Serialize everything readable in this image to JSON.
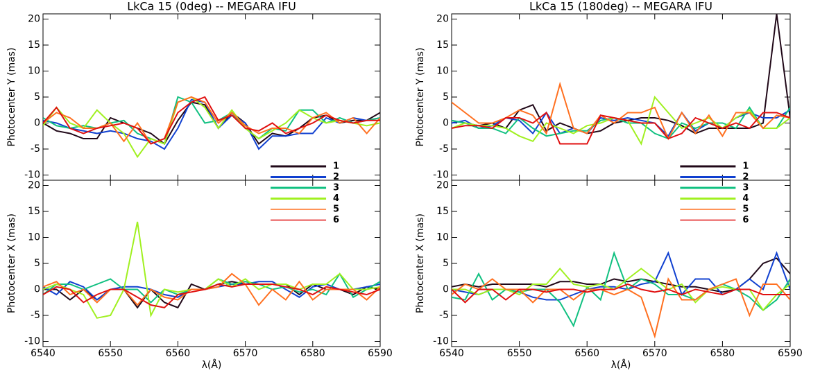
{
  "chart_data": [
    {
      "type": "line",
      "title": "LkCa 15 (0deg) -- MEGARA IFU",
      "xlabel": "λ(Å)",
      "x": [
        6540,
        6542,
        6544,
        6546,
        6548,
        6550,
        6552,
        6554,
        6556,
        6558,
        6560,
        6562,
        6564,
        6566,
        6568,
        6570,
        6572,
        6574,
        6576,
        6578,
        6580,
        6582,
        6584,
        6586,
        6588,
        6590
      ],
      "xlim": [
        6540,
        6590
      ],
      "xticks": [
        6540,
        6550,
        6560,
        6570,
        6580,
        6590
      ],
      "legend": [
        {
          "name": "1",
          "color": "#200818"
        },
        {
          "name": "2",
          "color": "#1040d0"
        },
        {
          "name": "3",
          "color": "#10c080"
        },
        {
          "name": "4",
          "color": "#a0f020"
        },
        {
          "name": "5",
          "color": "#ff7020"
        },
        {
          "name": "6",
          "color": "#e01010"
        }
      ],
      "panels": [
        {
          "ylabel": "Photocenter Y (mas)",
          "ylim": [
            -11,
            21
          ],
          "yticks": [
            -10,
            -5,
            0,
            5,
            10,
            15,
            20
          ],
          "series": [
            {
              "values": [
                0,
                -1.5,
                -2,
                -3,
                -3,
                1,
                0,
                -1,
                -2,
                -4,
                0.5,
                4,
                3.5,
                -1,
                2,
                0,
                -4,
                -2,
                -2.5,
                -1,
                1,
                1.5,
                0,
                0.5,
                0.5,
                2
              ]
            },
            {
              "values": [
                0.5,
                0,
                -1,
                -1.5,
                -2,
                -1.5,
                -2,
                -3,
                -3.5,
                -5,
                -1,
                4.5,
                4,
                -1,
                1.5,
                0,
                -5,
                -2.5,
                -2.5,
                -2,
                -2,
                1,
                0,
                1,
                0.5,
                1
              ]
            },
            {
              "values": [
                1,
                -0.5,
                -1,
                -0.5,
                -1,
                0,
                0.5,
                -2,
                -3,
                -4,
                5,
                4,
                0,
                0.5,
                2,
                -1,
                -3,
                -1,
                -1.5,
                2.5,
                2.5,
                0,
                1,
                0,
                0.5,
                1
              ]
            },
            {
              "values": [
                -0.5,
                3,
                0,
                -1,
                2.5,
                0,
                -2,
                -6.5,
                -3,
                -4,
                4,
                5,
                3,
                -1,
                2.5,
                -1,
                -3,
                -1.5,
                0,
                2.5,
                1,
                0,
                0.5,
                0,
                -0.5,
                0
              ]
            },
            {
              "values": [
                0,
                2,
                1,
                -1,
                -1,
                0,
                -3.5,
                0,
                -4,
                -3,
                4,
                5,
                4,
                0,
                2,
                -0.5,
                -2,
                -1,
                -1,
                -2,
                1,
                2,
                0,
                1,
                -2,
                1
              ]
            },
            {
              "values": [
                0,
                3,
                -1,
                -2,
                -1,
                -0.5,
                0,
                -1,
                -4,
                -3,
                2,
                4,
                5,
                0.5,
                1.5,
                -1,
                -1.5,
                0,
                -2,
                -1,
                0,
                1.5,
                0.5,
                0,
                0.5,
                0.5
              ]
            }
          ]
        },
        {
          "ylabel": "Photocenter X (mas)",
          "ylim": [
            -11,
            21
          ],
          "yticks": [
            -10,
            -5,
            0,
            5,
            10,
            15,
            20
          ],
          "series": [
            {
              "values": [
                0,
                0,
                -2,
                0,
                -2,
                0,
                0,
                -3.5,
                0,
                -2.5,
                -3.5,
                1,
                0,
                1,
                1.5,
                1,
                1,
                1,
                1,
                -1,
                1,
                0,
                0,
                -1,
                0.5,
                0
              ]
            },
            {
              "values": [
                0.5,
                -1,
                1.5,
                0.5,
                -2,
                0,
                0.5,
                0.5,
                0,
                -1,
                -1.5,
                0,
                0,
                0.5,
                1,
                1,
                1.5,
                1.5,
                0,
                -1.5,
                0.5,
                1,
                0,
                0,
                0.5,
                1
              ]
            },
            {
              "values": [
                -1,
                1,
                1,
                0,
                1,
                2,
                0,
                0,
                -2.5,
                0,
                -1,
                0,
                0,
                2,
                1,
                1.5,
                1,
                0,
                0.5,
                -0.5,
                0,
                -1,
                3,
                -1.5,
                0,
                1.5
              ]
            },
            {
              "values": [
                0,
                1,
                0,
                -1,
                -5.5,
                -5,
                0,
                13,
                -5,
                0,
                -0.5,
                0,
                0,
                2,
                0.5,
                2,
                0,
                1,
                1,
                0,
                1,
                1,
                3,
                0,
                0,
                0.5
              ]
            },
            {
              "values": [
                0.5,
                1.5,
                -1,
                0,
                -2.5,
                0,
                0,
                -3,
                0,
                -1.5,
                -2,
                0,
                0,
                0.5,
                3,
                1,
                -3,
                0,
                -2,
                1.5,
                -2,
                0,
                0,
                0,
                -2,
                0.5
              ]
            },
            {
              "values": [
                -1,
                0.5,
                0,
                -2.5,
                -1,
                0,
                0,
                -1.5,
                -3,
                -3.5,
                -1,
                -0.5,
                0,
                1,
                0.5,
                1,
                1,
                1,
                0.5,
                0,
                -1,
                0.5,
                0,
                -0.5,
                -1,
                0
              ]
            }
          ]
        }
      ]
    },
    {
      "type": "line",
      "title": "LkCa 15 (180deg) -- MEGARA IFU",
      "xlabel": "λ(Å)",
      "x": [
        6540,
        6542,
        6544,
        6546,
        6548,
        6550,
        6552,
        6554,
        6556,
        6558,
        6560,
        6562,
        6564,
        6566,
        6568,
        6570,
        6572,
        6574,
        6576,
        6578,
        6580,
        6582,
        6584,
        6586,
        6588,
        6590
      ],
      "xlim": [
        6540,
        6590
      ],
      "xticks": [
        6540,
        6550,
        6560,
        6570,
        6580,
        6590
      ],
      "legend": [
        {
          "name": "1",
          "color": "#200818"
        },
        {
          "name": "2",
          "color": "#1040d0"
        },
        {
          "name": "3",
          "color": "#10c080"
        },
        {
          "name": "4",
          "color": "#a0f020"
        },
        {
          "name": "5",
          "color": "#ff7020"
        },
        {
          "name": "6",
          "color": "#e01010"
        }
      ],
      "panels": [
        {
          "ylabel": "Photocenter Y (mas)",
          "ylim": [
            -11,
            21
          ],
          "yticks": [
            -10,
            -5,
            0,
            5,
            10,
            15,
            20
          ],
          "series": [
            {
              "values": [
                0.5,
                0,
                -0.5,
                0,
                -1,
                2.5,
                3.5,
                -1.5,
                0,
                -1,
                -2,
                -1.5,
                0,
                0.5,
                1,
                1,
                0.5,
                -0.5,
                -2,
                -1,
                -1,
                -1,
                -1,
                0,
                21,
                1
              ]
            },
            {
              "values": [
                0,
                0.5,
                -1,
                -0.5,
                1,
                0.5,
                -2,
                2,
                -2,
                -1,
                -2,
                1,
                0.5,
                1,
                0.5,
                0,
                -2.5,
                2,
                -1.5,
                0,
                -1,
                1,
                2,
                1,
                1,
                2.5
              ]
            },
            {
              "values": [
                0.5,
                0,
                -1,
                -1,
                -2,
                1,
                -1,
                -2.5,
                -2,
                -1.5,
                -1.5,
                0.5,
                1,
                0,
                0,
                -2,
                -3,
                0,
                -1,
                0,
                0,
                -1,
                3,
                -1,
                -1,
                3
              ]
            },
            {
              "values": [
                -1,
                0,
                -0.5,
                -0.5,
                -1,
                -2.5,
                -3.5,
                0,
                -1,
                -2,
                -0.5,
                0,
                1,
                0.5,
                -4,
                5,
                2,
                -1,
                0,
                1,
                -1,
                1,
                2.5,
                -1,
                -1,
                1
              ]
            },
            {
              "values": [
                4,
                2,
                0,
                0,
                1,
                2.5,
                1.5,
                -2,
                7.5,
                -1,
                -2,
                1.5,
                0,
                2,
                2,
                3,
                -3,
                2,
                -2,
                1.5,
                -2.5,
                2,
                2,
                -1,
                1.5,
                1
              ]
            },
            {
              "values": [
                -1,
                -0.5,
                -0.5,
                -1,
                1,
                1,
                0,
                2,
                -4,
                -4,
                -4,
                1.5,
                1,
                0.5,
                0,
                0,
                -3,
                -2,
                1,
                0,
                -1,
                0,
                -1,
                2,
                2,
                1
              ]
            }
          ]
        },
        {
          "ylabel": "Photocenter X (mas)",
          "ylim": [
            -11,
            21
          ],
          "yticks": [
            -10,
            -5,
            0,
            5,
            10,
            15,
            20
          ],
          "series": [
            {
              "values": [
                0.5,
                1,
                0.5,
                1,
                1,
                1,
                1,
                0.5,
                1.5,
                1.5,
                1,
                1,
                2,
                1.5,
                2,
                1.5,
                1,
                0.5,
                0.5,
                0,
                -0.5,
                0,
                2,
                5,
                6,
                3
              ]
            },
            {
              "values": [
                0,
                -0.5,
                -1,
                0,
                0,
                -0.5,
                -1.5,
                -2,
                -2,
                -1,
                0,
                0.5,
                0.5,
                0,
                1,
                1.5,
                7,
                -1,
                2,
                2,
                -1,
                0,
                2,
                0,
                7,
                0
              ]
            },
            {
              "values": [
                -1.5,
                -2,
                3,
                -2,
                0,
                -0.5,
                0,
                0,
                -2.5,
                -7,
                0.5,
                -2,
                7,
                0,
                2,
                1,
                -1,
                -1,
                -2,
                0,
                1,
                0,
                -1.5,
                -4,
                -2,
                2
              ]
            },
            {
              "values": [
                0,
                0,
                -1,
                0,
                0,
                -1,
                1,
                1,
                4,
                1,
                0.5,
                1,
                0,
                2,
                4,
                2,
                0,
                1,
                -2.5,
                0,
                0.5,
                0,
                0,
                -4,
                -1,
                1
              ]
            },
            {
              "values": [
                -1,
                1,
                0,
                2,
                0,
                0,
                -2.5,
                0,
                0,
                -2,
                0,
                0,
                -1,
                0,
                -1.5,
                -9,
                2,
                -2,
                -2,
                0,
                1,
                2,
                -5,
                1,
                1,
                -2
              ]
            },
            {
              "values": [
                0,
                -2.5,
                0,
                0,
                -2,
                0,
                0,
                -0.5,
                0,
                0,
                -0.5,
                0,
                0,
                1,
                0,
                -0.5,
                0,
                -1,
                0,
                -0.5,
                -1,
                0,
                0,
                -1,
                -1,
                -1
              ]
            }
          ]
        }
      ]
    }
  ]
}
